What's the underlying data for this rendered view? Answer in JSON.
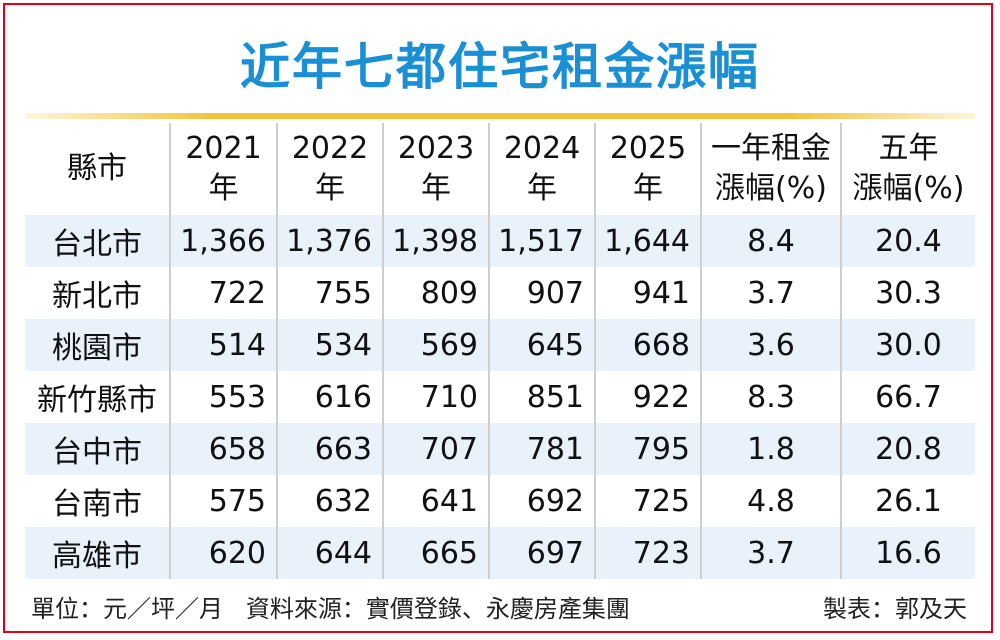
{
  "title": "近年七都住宅租金漲幅",
  "chart_data": {
    "type": "table",
    "columns": [
      {
        "line1": "縣市",
        "line2": ""
      },
      {
        "line1": "2021",
        "line2": "年"
      },
      {
        "line1": "2022",
        "line2": "年"
      },
      {
        "line1": "2023",
        "line2": "年"
      },
      {
        "line1": "2024",
        "line2": "年"
      },
      {
        "line1": "2025",
        "line2": "年"
      },
      {
        "line1": "一年租金",
        "line2": "漲幅(%)"
      },
      {
        "line1": "五年",
        "line2": "漲幅(%)"
      }
    ],
    "rows": [
      {
        "city": "台北市",
        "values": [
          "1,366",
          "1,376",
          "1,398",
          "1,517",
          "1,644"
        ],
        "one_year": "8.4",
        "five_year": "20.4"
      },
      {
        "city": "新北市",
        "values": [
          "722",
          "755",
          "809",
          "907",
          "941"
        ],
        "one_year": "3.7",
        "five_year": "30.3"
      },
      {
        "city": "桃園市",
        "values": [
          "514",
          "534",
          "569",
          "645",
          "668"
        ],
        "one_year": "3.6",
        "five_year": "30.0"
      },
      {
        "city": "新竹縣市",
        "values": [
          "553",
          "616",
          "710",
          "851",
          "922"
        ],
        "one_year": "8.3",
        "five_year": "66.7"
      },
      {
        "city": "台中市",
        "values": [
          "658",
          "663",
          "707",
          "781",
          "795"
        ],
        "one_year": "1.8",
        "five_year": "20.8"
      },
      {
        "city": "台南市",
        "values": [
          "575",
          "632",
          "641",
          "692",
          "725"
        ],
        "one_year": "4.8",
        "five_year": "26.1"
      },
      {
        "city": "高雄市",
        "values": [
          "620",
          "644",
          "665",
          "697",
          "723"
        ],
        "one_year": "3.7",
        "five_year": "16.6"
      }
    ]
  },
  "footer": {
    "unit": "單位：元／坪／月",
    "source": "資料來源：實價登錄、永慶房產集團",
    "credit": "製表：郭及天"
  },
  "colors": {
    "title": "#1a8fd6",
    "border": "#e0001a",
    "title_line": "#f2c23a",
    "row_shade": "#e9f1fa"
  }
}
